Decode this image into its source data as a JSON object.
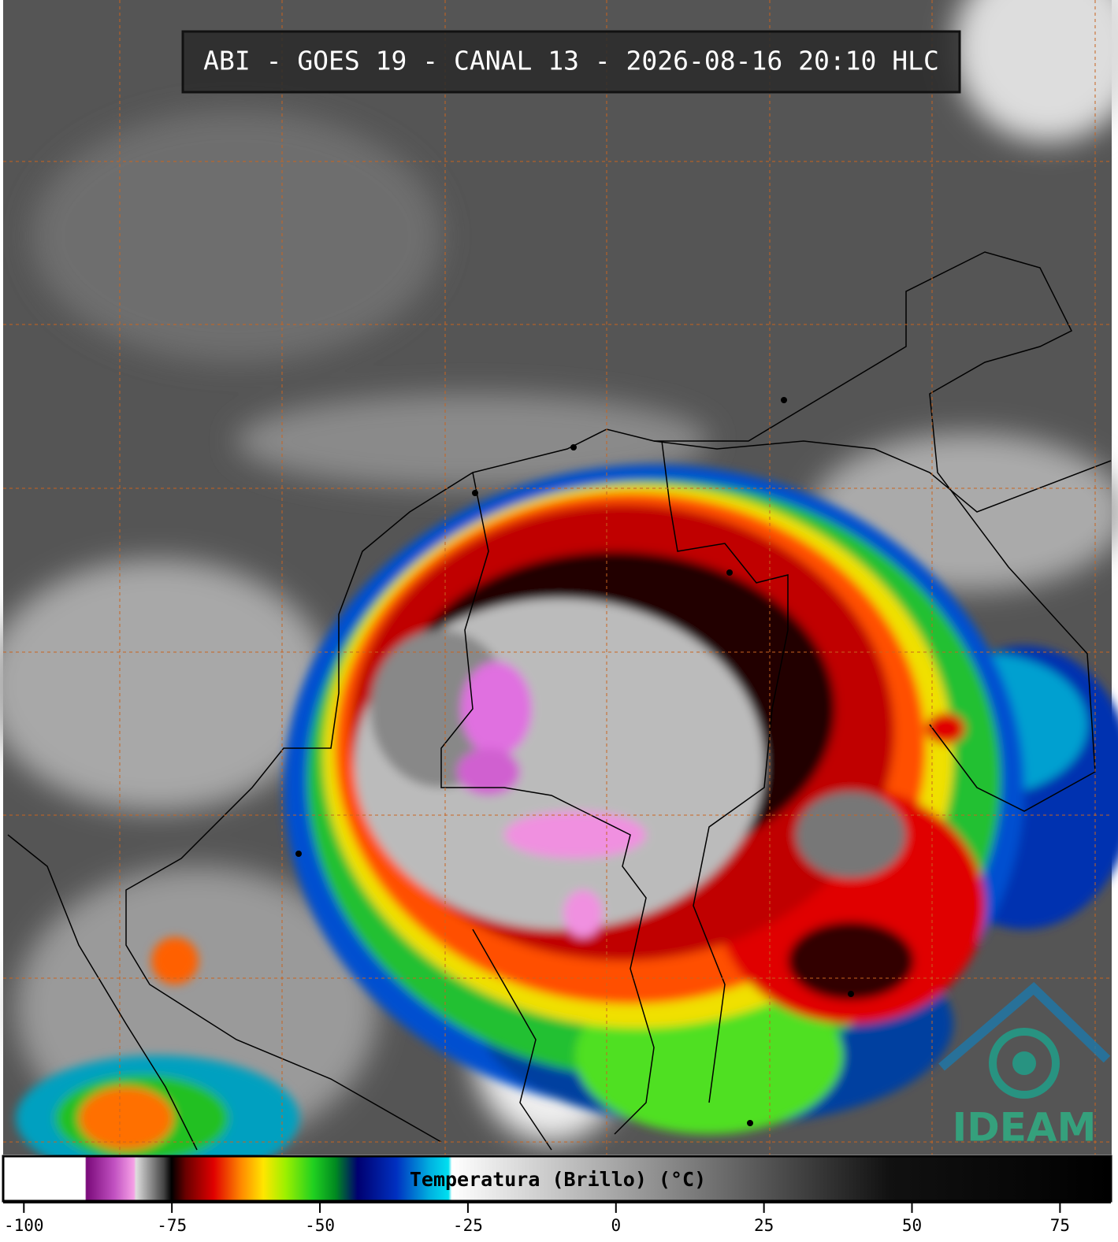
{
  "title": "ABI - GOES 19 - CANAL 13 - 2026-08-16 20:10 HLC",
  "colorbar": {
    "label": "Temperatura (Brillo) (°C)",
    "lim": [
      -103.5,
      83.6
    ],
    "ticks": [
      -100,
      -75,
      -50,
      -25,
      0,
      25,
      50,
      75
    ]
  },
  "logo": "IDEAM"
}
